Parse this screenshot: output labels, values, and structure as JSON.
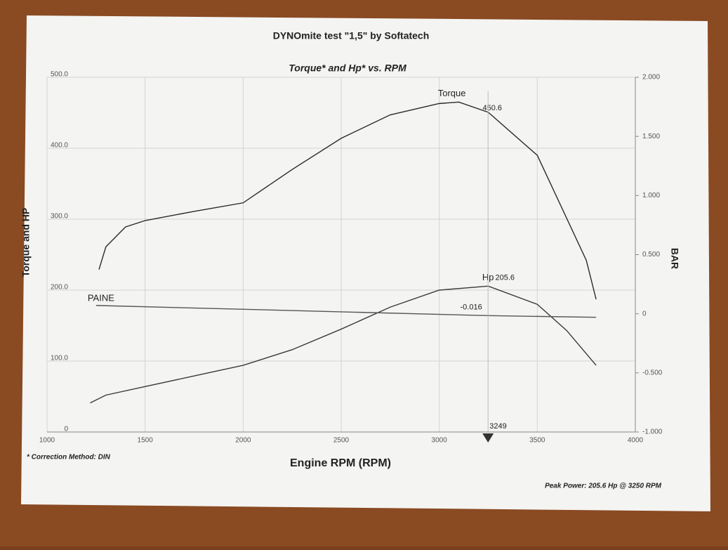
{
  "chart_data": {
    "type": "line",
    "title": "DYNOmite test \"1,5\" by Softatech",
    "subtitle": "Torque* and Hp* vs. RPM",
    "x_label": "Engine RPM (RPM)",
    "y_label": "Torque and HP",
    "y2_label": "BAR",
    "footnote": "* Correction Method: DIN",
    "peak_note": "Peak Power: 205.6 Hp @ 3250 RPM",
    "xlim": [
      1000,
      4000
    ],
    "xticks": [
      1000,
      1500,
      2000,
      2500,
      3000,
      3500,
      4000
    ],
    "ylim": [
      0,
      500
    ],
    "yticks": [
      0,
      {
        "value": 100,
        "label": "100.0"
      },
      {
        "value": 200,
        "label": "200.0"
      },
      {
        "value": 300,
        "label": "300.0"
      },
      {
        "value": 400,
        "label": "400.0"
      },
      {
        "value": 500,
        "label": "500.0"
      }
    ],
    "y2lim": [
      -1,
      2
    ],
    "y2ticks": [
      {
        "value": -1,
        "label": "-1.000"
      },
      {
        "value": -0.5,
        "label": "-0.500"
      },
      0,
      {
        "value": 0.5,
        "label": "0.500"
      },
      {
        "value": 1,
        "label": "1.000"
      },
      {
        "value": 1.5,
        "label": "1.500"
      },
      {
        "value": 2,
        "label": "2.000"
      }
    ],
    "grid": true,
    "series": [
      {
        "name": "Torque",
        "color": "#2a2a2a",
        "x": [
          1265,
          1300,
          1400,
          1500,
          1750,
          2000,
          2250,
          2500,
          2750,
          3000,
          3100,
          3250,
          3500,
          3750,
          3800
        ],
        "values": [
          229,
          261,
          289,
          298,
          311,
          323,
          370,
          414,
          447,
          463,
          465,
          450.6,
          390,
          242,
          187
        ]
      },
      {
        "name": "Hp",
        "color": "#3a3a3a",
        "x": [
          1220,
          1300,
          1500,
          1750,
          2000,
          2250,
          2500,
          2750,
          3000,
          3250,
          3500,
          3650,
          3800
        ],
        "values": [
          41,
          52,
          64,
          79,
          94,
          116,
          145,
          176,
          200,
          205.6,
          180,
          143,
          94
        ]
      },
      {
        "name": "PAINE",
        "color": "#555555",
        "axis": "y2",
        "x": [
          1250,
          3250,
          3800
        ],
        "values": [
          0.07,
          -0.016,
          -0.03
        ]
      }
    ],
    "annotations": [
      {
        "label": "450.6",
        "x": 3250,
        "value": 450.6,
        "series": 0
      },
      {
        "label": "205.6",
        "x": 3250,
        "value": 205.6,
        "series": 1
      },
      {
        "label": "-0.016",
        "x": 3250,
        "value": -0.016,
        "series": 2
      }
    ],
    "marker": {
      "label": "3249",
      "x": 3249
    }
  }
}
